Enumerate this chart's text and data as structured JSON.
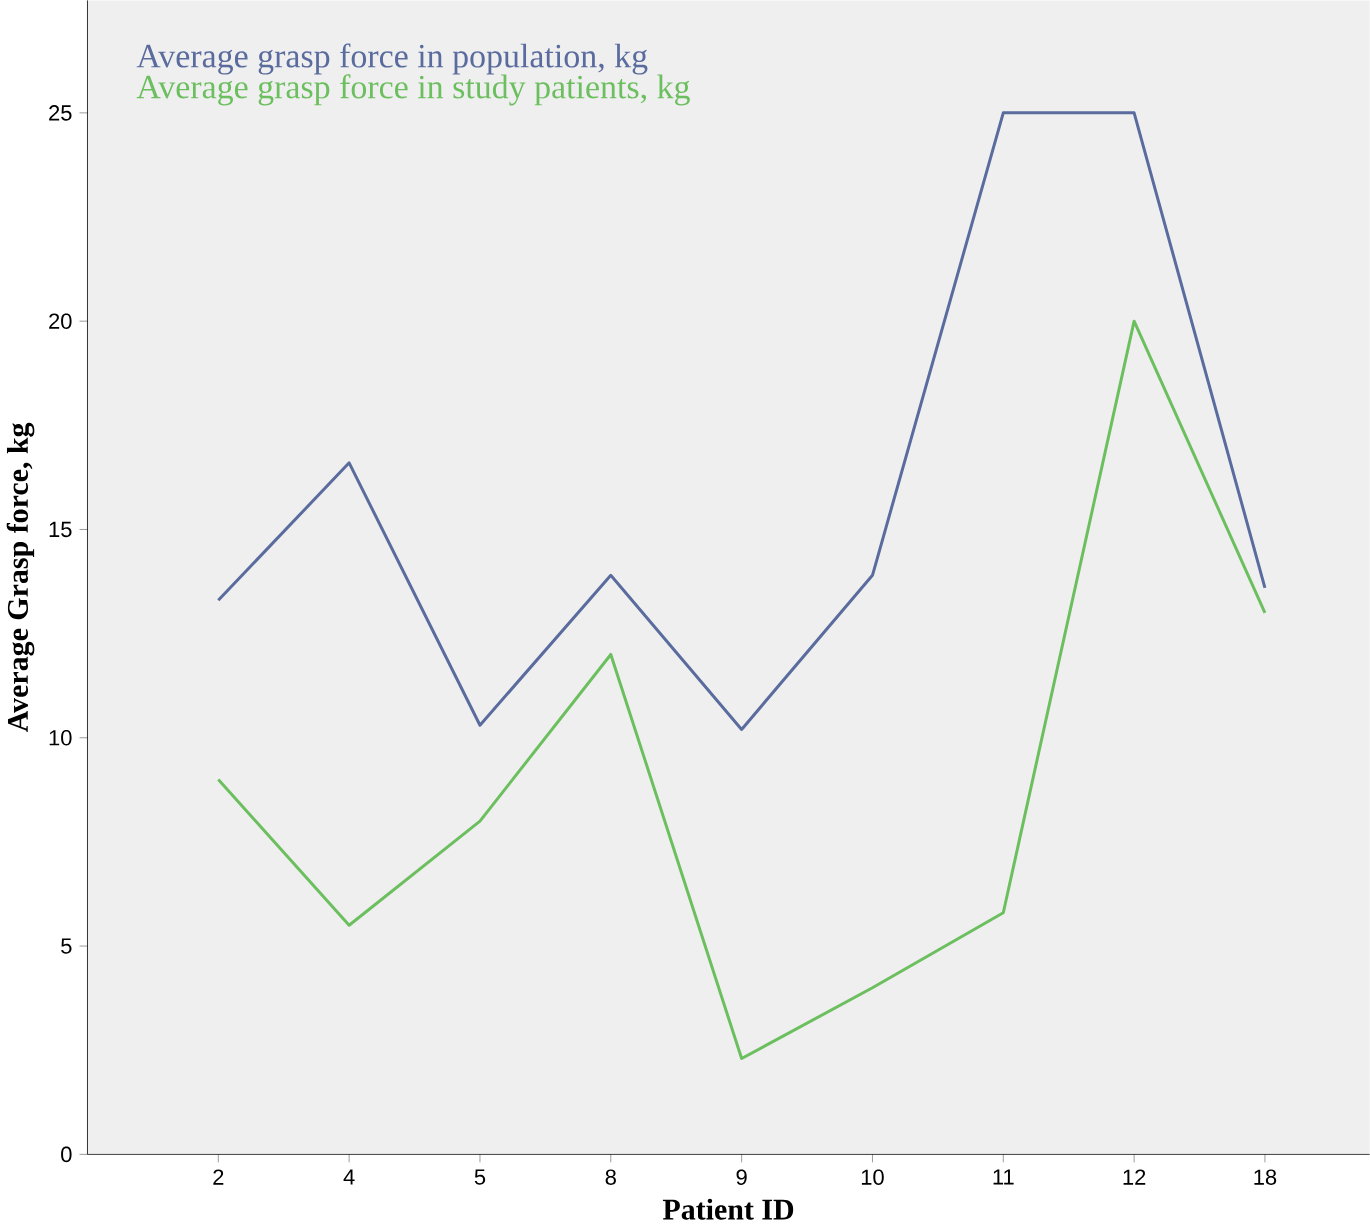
{
  "chart_data": {
    "type": "line",
    "xlabel": "Patient ID",
    "ylabel": "Average Grasp force, kg",
    "categories": [
      "2",
      "4",
      "5",
      "8",
      "9",
      "10",
      "11",
      "12",
      "18"
    ],
    "series": [
      {
        "name": "Average grasp force in population, kg",
        "color": "#5a6b9e",
        "values": [
          13.3,
          16.6,
          10.3,
          13.9,
          10.2,
          13.9,
          25,
          25,
          13.6
        ]
      },
      {
        "name": "Average grasp force in study patients, kg",
        "color": "#6cbf5e",
        "values": [
          9,
          5.5,
          8,
          12,
          2.3,
          4,
          5.8,
          20,
          13
        ]
      }
    ],
    "ylim": [
      0,
      27.7
    ],
    "yticks": [
      0,
      5,
      10,
      15,
      20,
      25
    ],
    "legend": "top left",
    "grid": false
  }
}
